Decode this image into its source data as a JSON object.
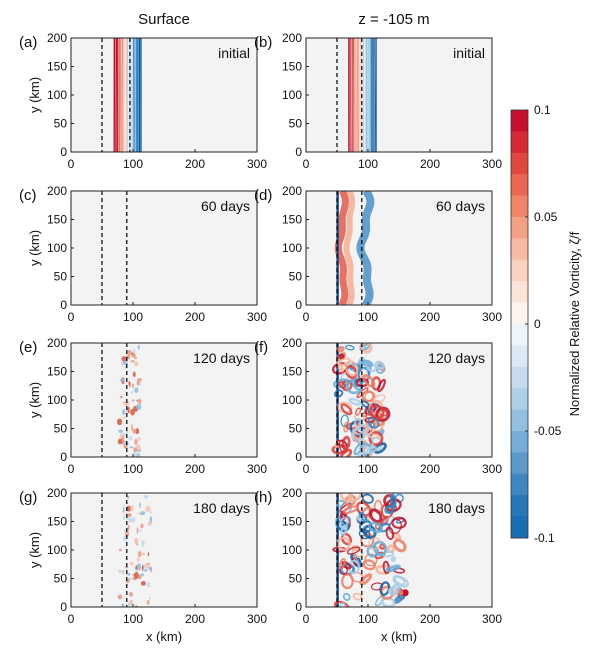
{
  "figure": {
    "column_titles": [
      "Surface",
      "z = -105 m"
    ],
    "colorbar": {
      "label": "Normalized Relative Vorticity, ζ/f",
      "ticks": [
        "0.1",
        "0.05",
        "0",
        "-0.05",
        "-0.1"
      ],
      "range": [
        -0.1,
        0.1
      ],
      "colormap": "diverging red-white-blue (red positive, blue negative)",
      "colors": {
        "pos_max": "#c8102e",
        "neg_max": "#1b6db4",
        "zero": "#f4f4f4"
      }
    }
  },
  "chart_data": [
    {
      "type": "heatmap",
      "panel_label": "(a)",
      "time_label": "initial",
      "column": "Surface",
      "xlabel": "",
      "ylabel": "y (km)",
      "xlim": [
        0,
        300
      ],
      "ylim": [
        0,
        200
      ],
      "xticks": [
        "0",
        "100",
        "200",
        "300"
      ],
      "yticks": [
        "0",
        "50",
        "100",
        "150",
        "200"
      ],
      "dashed_lines_x": [
        50,
        95
      ],
      "feature": "striped front: red (positive) 68-90 km, blue (negative) 90-113 km"
    },
    {
      "type": "heatmap",
      "panel_label": "(b)",
      "time_label": "initial",
      "column": "z = -105 m",
      "xlabel": "",
      "ylabel": "",
      "xlim": [
        0,
        300
      ],
      "ylim": [
        0,
        200
      ],
      "xticks": [
        "0",
        "100",
        "200",
        "300"
      ],
      "yticks": [
        "0",
        "50",
        "100",
        "150",
        "200"
      ],
      "dashed_lines_x": [
        50,
        90
      ],
      "feature": "striped front: red (positive) 68-90 km, blue (negative) 90-113 km"
    },
    {
      "type": "heatmap",
      "panel_label": "(c)",
      "time_label": "60 days",
      "column": "Surface",
      "xlabel": "",
      "ylabel": "y (km)",
      "xlim": [
        0,
        300
      ],
      "ylim": [
        0,
        200
      ],
      "xticks": [
        "0",
        "100",
        "200",
        "300"
      ],
      "yticks": [
        "0",
        "50",
        "100",
        "150",
        "200"
      ],
      "dashed_lines_x": [
        50,
        90
      ],
      "feature": "near-zero vorticity everywhere"
    },
    {
      "type": "heatmap",
      "panel_label": "(d)",
      "time_label": "60 days",
      "column": "z = -105 m",
      "xlabel": "",
      "ylabel": "",
      "xlim": [
        0,
        300
      ],
      "ylim": [
        0,
        200
      ],
      "xticks": [
        "0",
        "100",
        "200",
        "300"
      ],
      "yticks": [
        "0",
        "50",
        "100",
        "150",
        "200"
      ],
      "dashed_lines_x": [
        50,
        90
      ],
      "feature": "meandering red band 55-80 km, blue band 85-110 km"
    },
    {
      "type": "heatmap",
      "panel_label": "(e)",
      "time_label": "120 days",
      "column": "Surface",
      "xlabel": "",
      "ylabel": "y (km)",
      "xlim": [
        0,
        300
      ],
      "ylim": [
        0,
        200
      ],
      "xticks": [
        "0",
        "100",
        "200",
        "300"
      ],
      "yticks": [
        "0",
        "50",
        "100",
        "150",
        "200"
      ],
      "dashed_lines_x": [
        50,
        90
      ],
      "feature": "weak scattered filaments near 80-110 km"
    },
    {
      "type": "heatmap",
      "panel_label": "(f)",
      "time_label": "120 days",
      "column": "z = -105 m",
      "xlabel": "",
      "ylabel": "",
      "xlim": [
        0,
        300
      ],
      "ylim": [
        0,
        200
      ],
      "xticks": [
        "0",
        "100",
        "200",
        "300"
      ],
      "yticks": [
        "0",
        "50",
        "100",
        "150",
        "200"
      ],
      "dashed_lines_x": [
        50,
        90
      ],
      "feature": "turbulent eddies 50-125 km"
    },
    {
      "type": "heatmap",
      "panel_label": "(g)",
      "time_label": "180 days",
      "column": "Surface",
      "xlabel": "x (km)",
      "ylabel": "y (km)",
      "xlim": [
        0,
        300
      ],
      "ylim": [
        0,
        200
      ],
      "xticks": [
        "0",
        "100",
        "200",
        "300"
      ],
      "yticks": [
        "0",
        "50",
        "100",
        "150",
        "200"
      ],
      "dashed_lines_x": [
        50,
        90
      ],
      "feature": "weak scattered filaments 50-130 km"
    },
    {
      "type": "heatmap",
      "panel_label": "(h)",
      "time_label": "180 days",
      "column": "z = -105 m",
      "xlabel": "x (km)",
      "ylabel": "",
      "xlim": [
        0,
        300
      ],
      "ylim": [
        0,
        200
      ],
      "xticks": [
        "0",
        "100",
        "200",
        "300"
      ],
      "yticks": [
        "0",
        "50",
        "100",
        "150",
        "200"
      ],
      "dashed_lines_x": [
        50,
        90
      ],
      "feature": "turbulent eddies 50-160 km, isolated eddy near x=160 km, y=25 km"
    }
  ]
}
